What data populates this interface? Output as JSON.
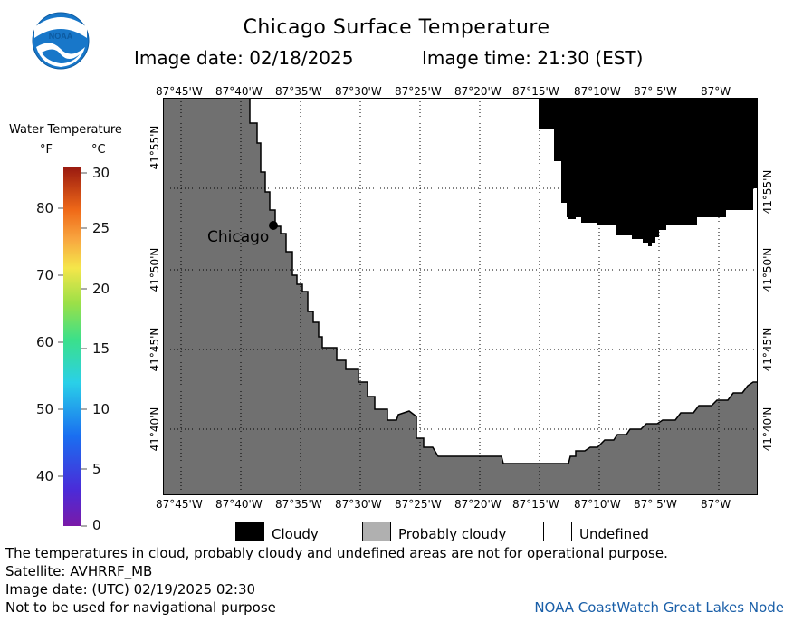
{
  "header": {
    "title": "Chicago Surface Temperature",
    "image_date": "Image date: 02/18/2025",
    "image_time": "Image time: 21:30 (EST)"
  },
  "map": {
    "lon_ticks": [
      "87°45'W",
      "87°40'W",
      "87°35'W",
      "87°30'W",
      "87°25'W",
      "87°20'W",
      "87°15'W",
      "87°10'W",
      "87° 5'W",
      "87°W"
    ],
    "lat_ticks": [
      "41°55'N",
      "41°50'N",
      "41°45'N",
      "41°40'N"
    ],
    "city_label": "Chicago",
    "colors": {
      "land": "#707070",
      "water_undefined": "#ffffff",
      "cloud": "#000000",
      "grid": "#000000"
    }
  },
  "scale": {
    "title": "Water Temperature",
    "unit_f": "°F",
    "unit_c": "°C",
    "fahrenheit": [
      "80",
      "70",
      "60",
      "50",
      "40"
    ],
    "celsius": [
      "30",
      "25",
      "20",
      "15",
      "10",
      "5",
      "0"
    ]
  },
  "legend": {
    "cloudy": "Cloudy",
    "probably_cloudy": "Probably cloudy",
    "undefined": "Undefined"
  },
  "footer": {
    "note": "The temperatures in cloud, probably cloudy and undefined areas are not for operational purpose.",
    "satellite": "Satellite: AVHRRF_MB",
    "utc_date": "Image date: (UTC) 02/19/2025  02:30",
    "nav_warning": "Not to be used for navigational purpose",
    "credit": "NOAA CoastWatch Great Lakes Node"
  }
}
